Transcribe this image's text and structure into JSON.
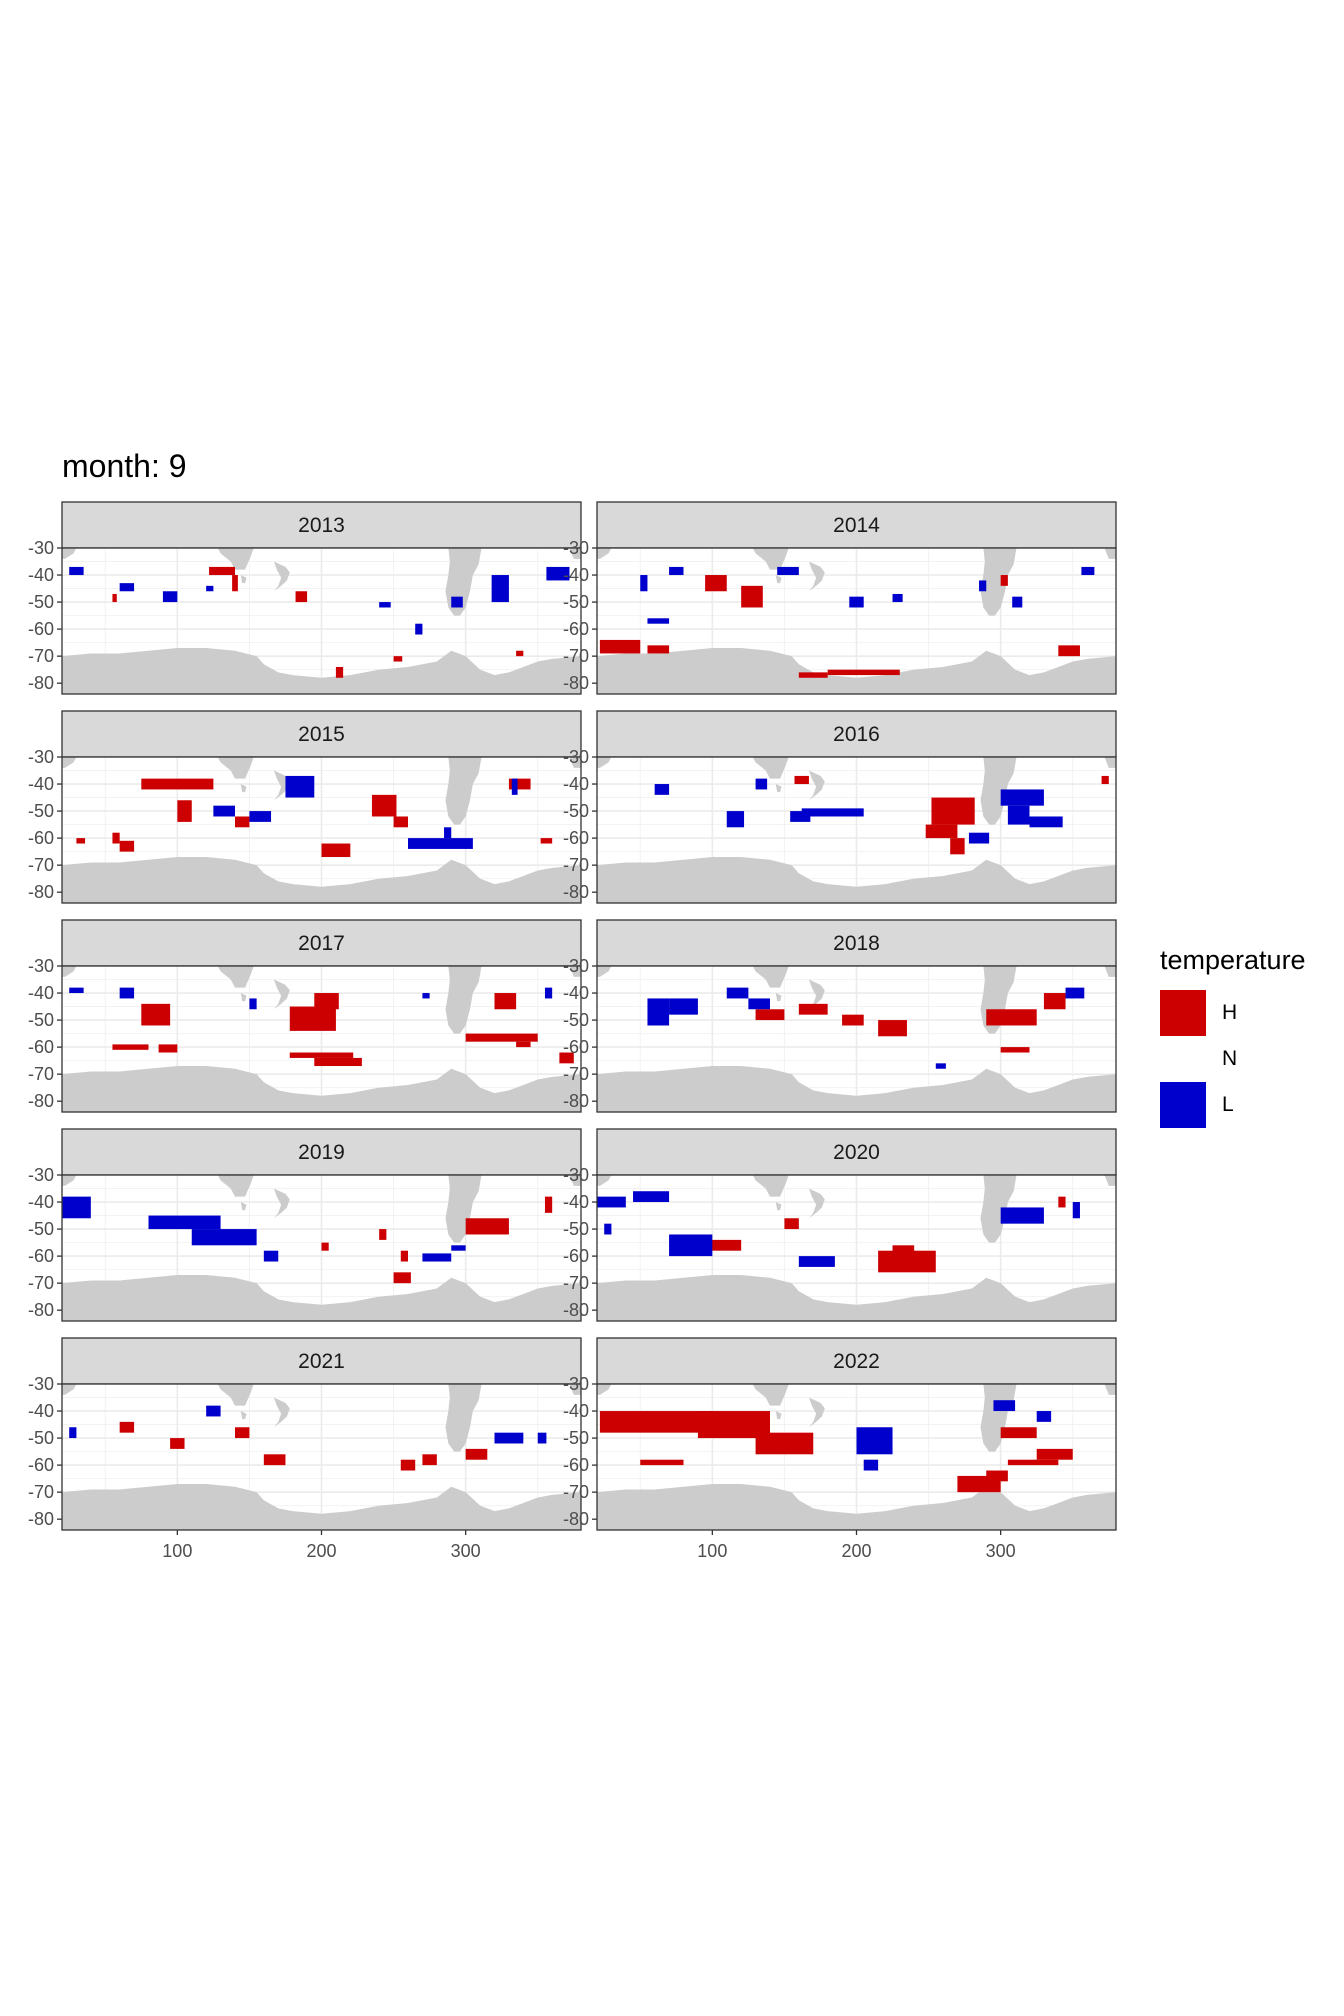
{
  "title": "month: 9",
  "legend": {
    "title": "temperature",
    "items": [
      {
        "label": "H",
        "color": "#CC0000"
      },
      {
        "label": "N",
        "color": "#FFFFFF"
      },
      {
        "label": "L",
        "color": "#0000CC"
      }
    ]
  },
  "chart_data": {
    "type": "heatmap",
    "xticks": [
      100,
      200,
      300
    ],
    "yticks": [
      -30,
      -40,
      -50,
      -60,
      -70,
      -80
    ],
    "xlim": [
      20,
      380
    ],
    "ylim": [
      -84,
      -30
    ],
    "land_color": "#CCCCCC",
    "grid": true,
    "panels": [
      {
        "year": "2013",
        "H": [
          [
            122,
            140,
            -40,
            -37
          ],
          [
            138,
            142,
            -46,
            -40
          ],
          [
            182,
            190,
            -50,
            -46
          ],
          [
            210,
            215,
            -78,
            -74
          ],
          [
            250,
            256,
            -72,
            -70
          ],
          [
            335,
            340,
            -70,
            -68
          ],
          [
            55,
            58,
            -50,
            -47
          ]
        ],
        "L": [
          [
            25,
            35,
            -40,
            -37
          ],
          [
            60,
            70,
            -46,
            -43
          ],
          [
            90,
            100,
            -50,
            -46
          ],
          [
            120,
            125,
            -46,
            -44
          ],
          [
            240,
            248,
            -52,
            -50
          ],
          [
            265,
            270,
            -62,
            -58
          ],
          [
            290,
            298,
            -52,
            -48
          ],
          [
            318,
            330,
            -50,
            -40
          ],
          [
            356,
            372,
            -42,
            -37
          ]
        ]
      },
      {
        "year": "2014",
        "H": [
          [
            22,
            50,
            -69,
            -64
          ],
          [
            55,
            70,
            -69,
            -66
          ],
          [
            95,
            110,
            -46,
            -40
          ],
          [
            120,
            135,
            -52,
            -44
          ],
          [
            160,
            180,
            -78,
            -76
          ],
          [
            180,
            230,
            -77,
            -75
          ],
          [
            300,
            305,
            -44,
            -40
          ],
          [
            340,
            355,
            -70,
            -66
          ]
        ],
        "L": [
          [
            55,
            70,
            -58,
            -56
          ],
          [
            50,
            55,
            -46,
            -40
          ],
          [
            70,
            80,
            -40,
            -37
          ],
          [
            145,
            160,
            -40,
            -37
          ],
          [
            195,
            205,
            -52,
            -48
          ],
          [
            225,
            232,
            -50,
            -47
          ],
          [
            285,
            290,
            -46,
            -42
          ],
          [
            308,
            315,
            -52,
            -48
          ],
          [
            356,
            365,
            -40,
            -37
          ]
        ]
      },
      {
        "year": "2015",
        "H": [
          [
            55,
            60,
            -62,
            -58
          ],
          [
            60,
            70,
            -65,
            -61
          ],
          [
            75,
            125,
            -42,
            -38
          ],
          [
            100,
            110,
            -54,
            -46
          ],
          [
            140,
            150,
            -56,
            -52
          ],
          [
            200,
            220,
            -67,
            -62
          ],
          [
            235,
            252,
            -52,
            -44
          ],
          [
            250,
            260,
            -56,
            -52
          ],
          [
            330,
            345,
            -42,
            -38
          ],
          [
            352,
            360,
            -62,
            -60
          ],
          [
            30,
            36,
            -62,
            -60
          ]
        ],
        "L": [
          [
            175,
            195,
            -45,
            -37
          ],
          [
            125,
            140,
            -52,
            -48
          ],
          [
            150,
            165,
            -54,
            -50
          ],
          [
            260,
            305,
            -64,
            -60
          ],
          [
            285,
            290,
            -60,
            -56
          ],
          [
            332,
            336,
            -44,
            -38
          ]
        ]
      },
      {
        "year": "2016",
        "H": [
          [
            252,
            282,
            -55,
            -45
          ],
          [
            248,
            270,
            -60,
            -55
          ],
          [
            265,
            275,
            -66,
            -60
          ],
          [
            157,
            167,
            -40,
            -37
          ],
          [
            370,
            375,
            -40,
            -37
          ]
        ],
        "L": [
          [
            305,
            320,
            -55,
            -48
          ],
          [
            320,
            343,
            -56,
            -52
          ],
          [
            300,
            330,
            -48,
            -42
          ],
          [
            154,
            168,
            -54,
            -50
          ],
          [
            162,
            205,
            -52,
            -49
          ],
          [
            110,
            122,
            -56,
            -50
          ],
          [
            130,
            138,
            -42,
            -38
          ],
          [
            60,
            70,
            -44,
            -40
          ],
          [
            278,
            292,
            -62,
            -58
          ]
        ]
      },
      {
        "year": "2017",
        "H": [
          [
            195,
            228,
            -67,
            -64
          ],
          [
            178,
            222,
            -64,
            -62
          ],
          [
            178,
            210,
            -54,
            -45
          ],
          [
            195,
            212,
            -46,
            -40
          ],
          [
            55,
            80,
            -61,
            -59
          ],
          [
            87,
            100,
            -62,
            -59
          ],
          [
            75,
            95,
            -52,
            -44
          ],
          [
            300,
            350,
            -58,
            -55
          ],
          [
            335,
            345,
            -60,
            -58
          ],
          [
            365,
            375,
            -66,
            -62
          ],
          [
            320,
            335,
            -46,
            -40
          ]
        ],
        "L": [
          [
            25,
            35,
            -40,
            -38
          ],
          [
            60,
            70,
            -42,
            -38
          ],
          [
            150,
            155,
            -46,
            -42
          ],
          [
            270,
            275,
            -42,
            -40
          ],
          [
            355,
            360,
            -42,
            -38
          ]
        ]
      },
      {
        "year": "2018",
        "H": [
          [
            290,
            325,
            -52,
            -46
          ],
          [
            300,
            320,
            -62,
            -60
          ],
          [
            330,
            345,
            -46,
            -40
          ],
          [
            160,
            180,
            -48,
            -44
          ],
          [
            190,
            205,
            -52,
            -48
          ],
          [
            215,
            235,
            -56,
            -50
          ],
          [
            130,
            150,
            -50,
            -46
          ]
        ],
        "L": [
          [
            55,
            70,
            -52,
            -42
          ],
          [
            70,
            90,
            -48,
            -42
          ],
          [
            110,
            125,
            -42,
            -38
          ],
          [
            125,
            140,
            -46,
            -42
          ],
          [
            255,
            262,
            -68,
            -66
          ],
          [
            345,
            358,
            -42,
            -38
          ]
        ]
      },
      {
        "year": "2019",
        "H": [
          [
            250,
            262,
            -70,
            -66
          ],
          [
            240,
            245,
            -54,
            -50
          ],
          [
            255,
            260,
            -62,
            -58
          ],
          [
            200,
            205,
            -58,
            -55
          ],
          [
            300,
            330,
            -52,
            -46
          ],
          [
            355,
            360,
            -44,
            -38
          ]
        ],
        "L": [
          [
            20,
            40,
            -46,
            -38
          ],
          [
            80,
            130,
            -50,
            -45
          ],
          [
            110,
            155,
            -56,
            -50
          ],
          [
            160,
            170,
            -62,
            -58
          ],
          [
            270,
            290,
            -62,
            -59
          ],
          [
            290,
            300,
            -58,
            -56
          ]
        ]
      },
      {
        "year": "2020",
        "H": [
          [
            215,
            255,
            -66,
            -58
          ],
          [
            225,
            240,
            -62,
            -56
          ],
          [
            80,
            120,
            -58,
            -54
          ],
          [
            150,
            160,
            -50,
            -46
          ],
          [
            340,
            345,
            -42,
            -38
          ]
        ],
        "L": [
          [
            70,
            100,
            -60,
            -52
          ],
          [
            20,
            40,
            -42,
            -38
          ],
          [
            45,
            70,
            -40,
            -36
          ],
          [
            160,
            185,
            -64,
            -60
          ],
          [
            25,
            30,
            -52,
            -48
          ],
          [
            300,
            330,
            -48,
            -42
          ],
          [
            350,
            355,
            -46,
            -40
          ]
        ]
      },
      {
        "year": "2021",
        "H": [
          [
            160,
            175,
            -60,
            -56
          ],
          [
            255,
            265,
            -62,
            -58
          ],
          [
            270,
            280,
            -60,
            -56
          ],
          [
            300,
            315,
            -58,
            -54
          ],
          [
            140,
            150,
            -50,
            -46
          ],
          [
            60,
            70,
            -48,
            -44
          ],
          [
            95,
            105,
            -54,
            -50
          ]
        ],
        "L": [
          [
            25,
            30,
            -50,
            -46
          ],
          [
            120,
            130,
            -42,
            -38
          ],
          [
            320,
            340,
            -52,
            -48
          ],
          [
            350,
            356,
            -52,
            -48
          ]
        ]
      },
      {
        "year": "2022",
        "H": [
          [
            270,
            300,
            -70,
            -64
          ],
          [
            290,
            305,
            -66,
            -62
          ],
          [
            305,
            340,
            -60,
            -58
          ],
          [
            325,
            350,
            -58,
            -54
          ],
          [
            300,
            325,
            -50,
            -46
          ],
          [
            22,
            100,
            -48,
            -40
          ],
          [
            50,
            80,
            -60,
            -58
          ],
          [
            90,
            140,
            -50,
            -40
          ],
          [
            130,
            170,
            -56,
            -48
          ]
        ],
        "L": [
          [
            200,
            225,
            -56,
            -46
          ],
          [
            205,
            215,
            -62,
            -58
          ],
          [
            295,
            310,
            -40,
            -36
          ],
          [
            325,
            335,
            -44,
            -40
          ]
        ]
      }
    ]
  }
}
